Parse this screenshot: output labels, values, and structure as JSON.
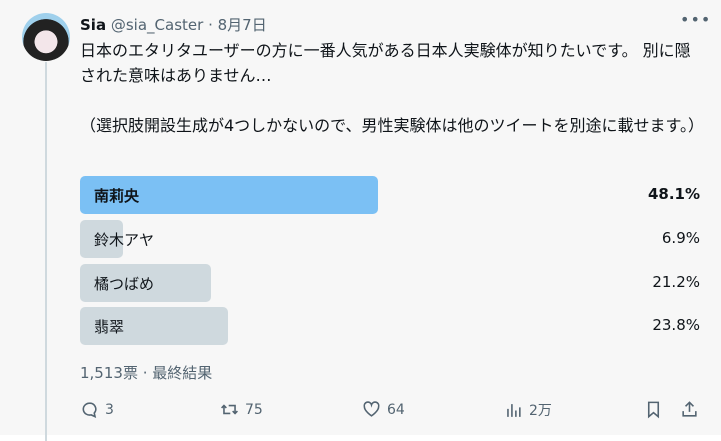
{
  "tweet": {
    "name": "Sia",
    "handle": "@sia_Caster",
    "date": "8月7日",
    "text": "日本のエタリタユーザーの方に一番人気がある日本人実験体が知りたいです。 別に隠された意味はありません…\n\n（選択肢開設生成が4つしかないので、男性実験体は他のツイートを別途に載せます。）"
  },
  "poll": {
    "options": [
      {
        "label": "南莉央",
        "percent": "48.1%",
        "value": 48.1,
        "winner": true
      },
      {
        "label": "鈴木アヤ",
        "percent": "6.9%",
        "value": 6.9
      },
      {
        "label": "橘つばめ",
        "percent": "21.2%",
        "value": 21.2
      },
      {
        "label": "翡翠",
        "percent": "23.8%",
        "value": 23.8
      }
    ],
    "summary": "1,513票 · 最終結果",
    "win_color": "#7bc0f4",
    "bar_color": "#cfd9de"
  },
  "actions": {
    "replies": "3",
    "retweets": "75",
    "likes": "64",
    "views": "2万"
  }
}
